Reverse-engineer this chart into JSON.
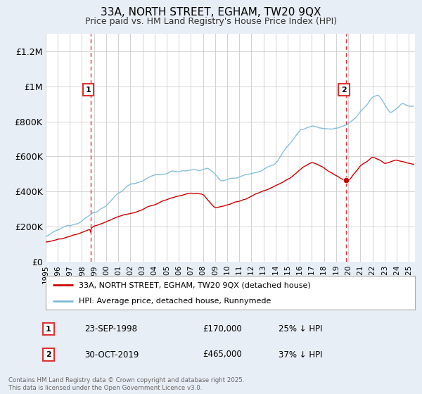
{
  "title": "33A, NORTH STREET, EGHAM, TW20 9QX",
  "subtitle": "Price paid vs. HM Land Registry's House Price Index (HPI)",
  "sale1_date": "23-SEP-1998",
  "sale1_price": 170000,
  "sale1_label": "25% ↓ HPI",
  "sale1_year": 1998.73,
  "sale2_date": "30-OCT-2019",
  "sale2_price": 465000,
  "sale2_label": "37% ↓ HPI",
  "sale2_year": 2019.83,
  "red_line_color": "#cc0000",
  "blue_line_color": "#7ab8d9",
  "background_color": "#e8eef5",
  "plot_bg_color": "#ffffff",
  "grid_color": "#cccccc",
  "dashed_line_color": "#dd3333",
  "ylim": [
    0,
    1300000
  ],
  "xlim": [
    1995,
    2025.5
  ],
  "yticks": [
    0,
    200000,
    400000,
    600000,
    800000,
    1000000,
    1200000
  ],
  "ytick_labels": [
    "£0",
    "£200K",
    "£400K",
    "£600K",
    "£800K",
    "£1M",
    "£1.2M"
  ],
  "footer_text": "Contains HM Land Registry data © Crown copyright and database right 2025.\nThis data is licensed under the Open Government Licence v3.0.",
  "legend_label_red": "33A, NORTH STREET, EGHAM, TW20 9QX (detached house)",
  "legend_label_blue": "HPI: Average price, detached house, Runnymede"
}
